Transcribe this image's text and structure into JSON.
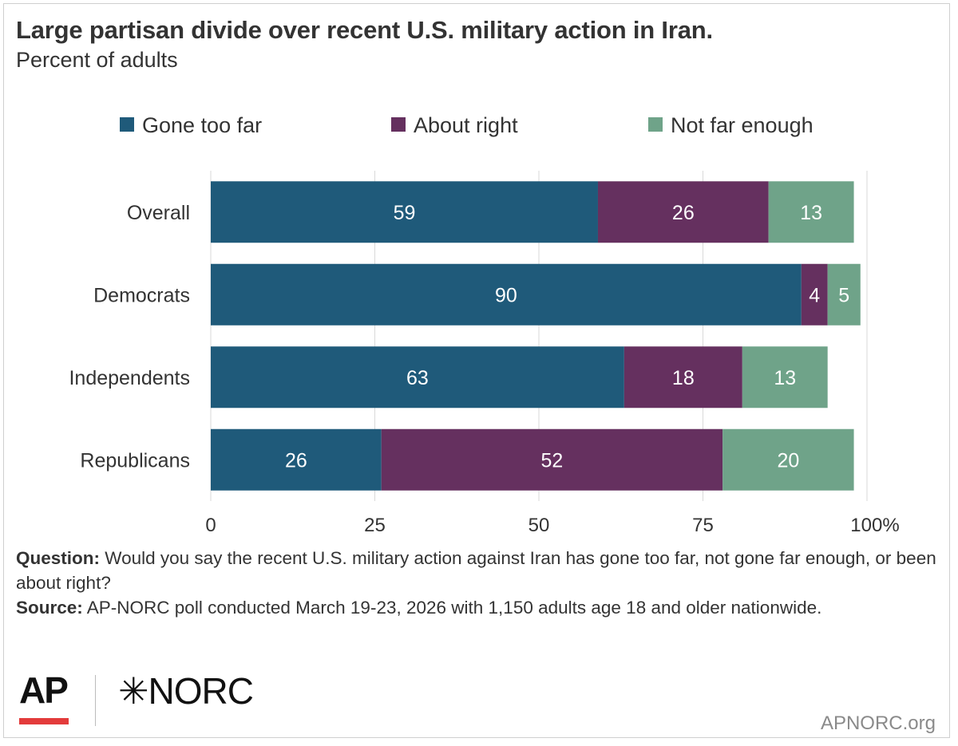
{
  "chart_data": {
    "type": "bar",
    "orientation": "horizontal",
    "stacked": true,
    "title": "Large partisan divide over recent U.S. military action in Iran.",
    "subtitle": "Percent of adults",
    "categories": [
      "Overall",
      "Democrats",
      "Independents",
      "Republicans"
    ],
    "series": [
      {
        "name": "Gone too far",
        "color": "#1f5a7a",
        "values": [
          59,
          90,
          63,
          26
        ]
      },
      {
        "name": "About right",
        "color": "#65305f",
        "values": [
          26,
          4,
          18,
          52
        ]
      },
      {
        "name": "Not far enough",
        "color": "#6fa389",
        "values": [
          13,
          5,
          13,
          20
        ]
      }
    ],
    "xticks": [
      "0",
      "25",
      "50",
      "75",
      "100%"
    ],
    "xtick_values": [
      0,
      25,
      50,
      75,
      100
    ],
    "xlim": [
      0,
      100
    ],
    "legend_position": "top",
    "grid": true
  },
  "notes": {
    "question_label": "Question:",
    "question_text": " Would you say the recent U.S. military action against Iran has gone too far, not gone far enough, or been about right?",
    "source_label": "Source:",
    "source_text": " AP-NORC poll conducted March 19-23, 2026 with 1,150 adults age 18 and older nationwide."
  },
  "footer": {
    "ap_logo_text": "AP",
    "norc_logo_text": "✳NORC",
    "site": "APNORC.org"
  }
}
